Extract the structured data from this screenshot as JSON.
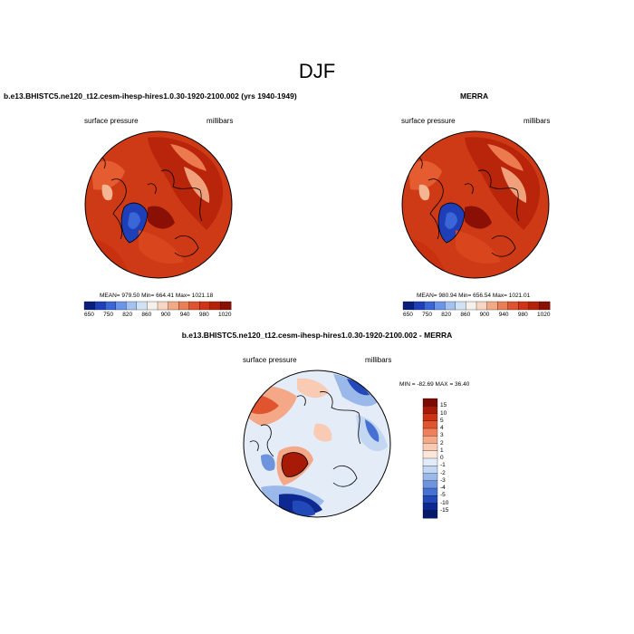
{
  "figure": {
    "season": "DJF"
  },
  "panels": [
    {
      "title": "b.e13.BHISTC5.ne120_t12.cesm-ihesp-hires1.0.30-1920-2100.002 (yrs 1940-1949)",
      "field": "surface pressure",
      "units": "millibars",
      "stats": "MEAN= 979.50   Min= 664.41   Max= 1021.18",
      "colorbar": {
        "ticks": [
          "650",
          "750",
          "820",
          "860",
          "900",
          "940",
          "980",
          "1020"
        ],
        "colors": [
          "#0a1f7a",
          "#1f3fb8",
          "#3a66d8",
          "#6b95e8",
          "#a3c2f0",
          "#d2e2f5",
          "#f5f0ea",
          "#f7d5c4",
          "#f2aa86",
          "#ea7e55",
          "#df5330",
          "#cf3515",
          "#b22108",
          "#8a0f05"
        ]
      }
    },
    {
      "title": "MERRA",
      "field": "surface pressure",
      "units": "millibars",
      "stats": "MEAN= 980.94   Min= 656.54   Max= 1021.01",
      "colorbar": {
        "ticks": [
          "650",
          "750",
          "820",
          "860",
          "900",
          "940",
          "980",
          "1020"
        ],
        "colors": [
          "#0a1f7a",
          "#1f3fb8",
          "#3a66d8",
          "#6b95e8",
          "#a3c2f0",
          "#d2e2f5",
          "#f5f0ea",
          "#f7d5c4",
          "#f2aa86",
          "#ea7e55",
          "#df5330",
          "#cf3515",
          "#b22108",
          "#8a0f05"
        ]
      }
    },
    {
      "title": "b.e13.BHISTC5.ne120_t12.cesm-ihesp-hires1.0.30-1920-2100.002 - MERRA",
      "field": "surface pressure",
      "units": "millibars",
      "stats": "MIN = -82.69  MAX =  36.40",
      "colorbar": {
        "ticks": [
          "15",
          "10",
          "5",
          "4",
          "3",
          "2",
          "1",
          "0",
          "-1",
          "-2",
          "-3",
          "-4",
          "-5",
          "-10",
          "-15"
        ],
        "colors": [
          "#7a0a02",
          "#a81a08",
          "#cc3214",
          "#e05530",
          "#ee7f5a",
          "#f5a888",
          "#f9cbb5",
          "#fbe6da",
          "#e2ecf8",
          "#c3d6f2",
          "#9bb8ea",
          "#6f94de",
          "#4670d2",
          "#2348b8",
          "#0d2890",
          "#061a6a"
        ]
      }
    }
  ]
}
